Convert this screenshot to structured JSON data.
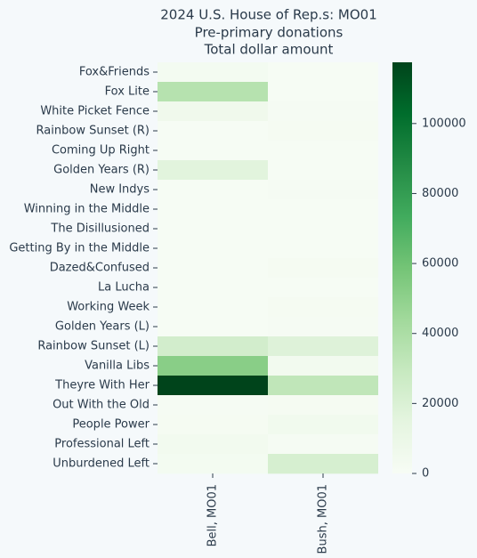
{
  "chart_data": {
    "type": "heatmap",
    "title": [
      "2024 U.S. House of Rep.s: MO01",
      "Pre-primary donations",
      "Total dollar amount"
    ],
    "x": [
      "Bell, MO01",
      "Bush, MO01"
    ],
    "y": [
      "Fox&Friends",
      "Fox Lite",
      "White Picket Fence",
      "Rainbow Sunset (R)",
      "Coming Up Right",
      "Golden Years (R)",
      "New Indys",
      "Winning in the Middle",
      "The Disillusioned",
      "Getting By in the Middle",
      "Dazed&Confused",
      "La Lucha",
      "Working Week",
      "Golden Years (L)",
      "Rainbow Sunset (L)",
      "Vanilla Libs",
      "Theyre With Her",
      "Out With the Old",
      "People Power",
      "Professional Left",
      "Unburdened Left"
    ],
    "z": [
      [
        3000,
        1000
      ],
      [
        36000,
        1000
      ],
      [
        6000,
        1500
      ],
      [
        1000,
        2000
      ],
      [
        500,
        1000
      ],
      [
        16000,
        1000
      ],
      [
        500,
        1500
      ],
      [
        500,
        1000
      ],
      [
        500,
        1000
      ],
      [
        500,
        1000
      ],
      [
        1000,
        2000
      ],
      [
        500,
        1000
      ],
      [
        500,
        2000
      ],
      [
        1000,
        1500
      ],
      [
        24000,
        18000
      ],
      [
        52000,
        4000
      ],
      [
        117500,
        32000
      ],
      [
        1500,
        2000
      ],
      [
        2000,
        5000
      ],
      [
        4000,
        1500
      ],
      [
        3000,
        22000
      ]
    ],
    "zlim": [
      0,
      117500
    ],
    "zticks": [
      0,
      20000,
      40000,
      60000,
      80000,
      100000
    ],
    "colorscale": [
      "#f7fcf5",
      "#e5f5e0",
      "#c7e9c0",
      "#a1d99b",
      "#74c476",
      "#41ab5d",
      "#238b45",
      "#006d2c",
      "#00441b"
    ]
  }
}
